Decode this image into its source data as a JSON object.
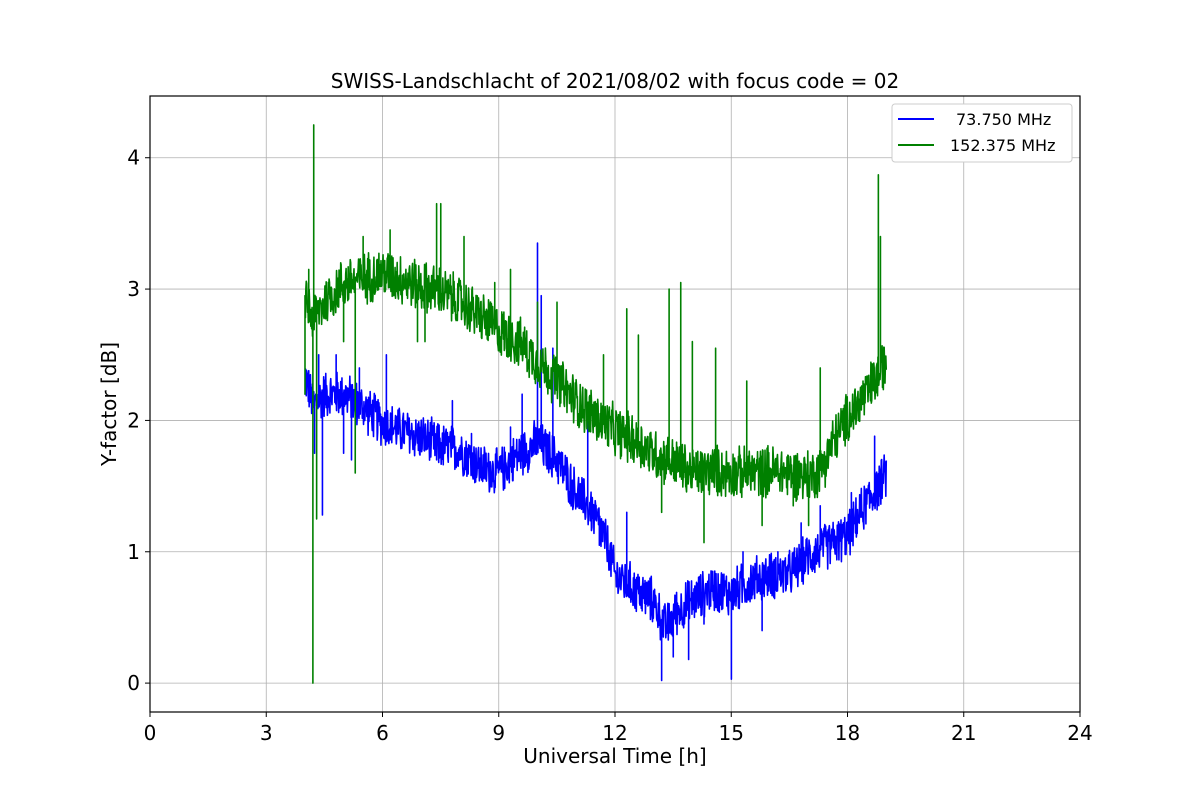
{
  "chart_data": {
    "type": "line",
    "title": "SWISS-Landschlacht of 2021/08/02 with focus code = 02",
    "xlabel": "Universal Time [h]",
    "ylabel": "Y-factor [dB]",
    "xlim": [
      0,
      24
    ],
    "ylim": [
      -0.22,
      4.47
    ],
    "xticks": [
      0,
      3,
      6,
      9,
      12,
      15,
      18,
      21,
      24
    ],
    "yticks": [
      0,
      1,
      2,
      3,
      4
    ],
    "grid": true,
    "legend_position": "top-right",
    "series": [
      {
        "name": "73.750 MHz",
        "color": "#0000ff",
        "base": {
          "x": [
            4.0,
            4.2,
            4.5,
            5.0,
            5.5,
            6.0,
            6.5,
            7.0,
            7.5,
            8.0,
            8.5,
            9.0,
            9.5,
            10.0,
            10.5,
            11.0,
            11.3,
            11.6,
            11.8,
            12.0,
            12.5,
            13.0,
            13.3,
            13.6,
            14.0,
            14.5,
            15.0,
            15.5,
            16.0,
            16.5,
            17.0,
            17.5,
            18.0,
            18.5,
            19.0
          ],
          "y": [
            2.35,
            2.12,
            2.2,
            2.2,
            2.1,
            1.98,
            1.92,
            1.87,
            1.8,
            1.78,
            1.65,
            1.6,
            1.74,
            1.83,
            1.7,
            1.45,
            1.35,
            1.2,
            1.05,
            0.82,
            0.72,
            0.62,
            0.42,
            0.55,
            0.63,
            0.72,
            0.68,
            0.78,
            0.82,
            0.83,
            0.97,
            1.05,
            1.12,
            1.38,
            1.58
          ]
        },
        "noise": 0.2,
        "spikes": [
          {
            "x": 4.25,
            "y": 1.75
          },
          {
            "x": 4.35,
            "y": 2.5
          },
          {
            "x": 4.45,
            "y": 1.28
          },
          {
            "x": 4.8,
            "y": 2.5
          },
          {
            "x": 5.0,
            "y": 1.75
          },
          {
            "x": 5.2,
            "y": 1.7
          },
          {
            "x": 5.4,
            "y": 2.4
          },
          {
            "x": 6.1,
            "y": 2.5
          },
          {
            "x": 7.1,
            "y": 1.8
          },
          {
            "x": 7.4,
            "y": 1.7
          },
          {
            "x": 7.8,
            "y": 2.15
          },
          {
            "x": 8.3,
            "y": 1.9
          },
          {
            "x": 9.3,
            "y": 1.95
          },
          {
            "x": 9.6,
            "y": 2.2
          },
          {
            "x": 10.0,
            "y": 3.35
          },
          {
            "x": 10.1,
            "y": 2.95
          },
          {
            "x": 10.4,
            "y": 2.55
          },
          {
            "x": 11.3,
            "y": 2.05
          },
          {
            "x": 11.6,
            "y": 1.05
          },
          {
            "x": 12.3,
            "y": 1.3
          },
          {
            "x": 12.7,
            "y": 0.55
          },
          {
            "x": 13.2,
            "y": 0.02
          },
          {
            "x": 13.5,
            "y": 0.2
          },
          {
            "x": 13.9,
            "y": 0.18
          },
          {
            "x": 14.3,
            "y": 0.45
          },
          {
            "x": 15.0,
            "y": 0.03
          },
          {
            "x": 15.3,
            "y": 1.0
          },
          {
            "x": 15.8,
            "y": 0.4
          },
          {
            "x": 16.2,
            "y": 1.0
          },
          {
            "x": 16.8,
            "y": 1.22
          },
          {
            "x": 17.3,
            "y": 1.35
          },
          {
            "x": 18.1,
            "y": 1.45
          },
          {
            "x": 18.7,
            "y": 1.88
          }
        ]
      },
      {
        "name": "152.375 MHz",
        "color": "#008000",
        "base": {
          "x": [
            4.0,
            4.2,
            4.5,
            5.0,
            5.5,
            6.0,
            6.5,
            7.0,
            7.5,
            8.0,
            8.5,
            9.0,
            9.5,
            10.0,
            10.5,
            11.0,
            11.5,
            12.0,
            12.5,
            13.0,
            13.5,
            14.0,
            14.5,
            15.0,
            15.5,
            16.0,
            16.5,
            17.0,
            17.3,
            17.6,
            18.0,
            18.5,
            19.0
          ],
          "y": [
            2.95,
            2.78,
            2.9,
            3.05,
            3.08,
            3.12,
            3.08,
            3.02,
            2.98,
            2.9,
            2.8,
            2.68,
            2.6,
            2.45,
            2.3,
            2.15,
            2.02,
            1.92,
            1.85,
            1.75,
            1.68,
            1.6,
            1.62,
            1.6,
            1.6,
            1.62,
            1.6,
            1.58,
            1.62,
            1.82,
            2.02,
            2.2,
            2.45
          ]
        },
        "noise": 0.22,
        "spikes": [
          {
            "x": 4.0,
            "y": 2.2
          },
          {
            "x": 4.1,
            "y": 3.15
          },
          {
            "x": 4.2,
            "y": 0.0
          },
          {
            "x": 4.22,
            "y": 4.25
          },
          {
            "x": 4.3,
            "y": 1.25
          },
          {
            "x": 4.5,
            "y": 2.8
          },
          {
            "x": 5.0,
            "y": 2.6
          },
          {
            "x": 5.3,
            "y": 1.6
          },
          {
            "x": 5.5,
            "y": 3.4
          },
          {
            "x": 6.2,
            "y": 3.45
          },
          {
            "x": 6.9,
            "y": 2.6
          },
          {
            "x": 7.1,
            "y": 2.6
          },
          {
            "x": 7.4,
            "y": 3.65
          },
          {
            "x": 7.5,
            "y": 3.65
          },
          {
            "x": 8.1,
            "y": 3.4
          },
          {
            "x": 8.9,
            "y": 3.05
          },
          {
            "x": 9.3,
            "y": 3.15
          },
          {
            "x": 9.6,
            "y": 2.5
          },
          {
            "x": 10.0,
            "y": 2.9
          },
          {
            "x": 10.5,
            "y": 2.9
          },
          {
            "x": 11.7,
            "y": 2.5
          },
          {
            "x": 12.3,
            "y": 2.85
          },
          {
            "x": 12.6,
            "y": 2.65
          },
          {
            "x": 13.4,
            "y": 3.0
          },
          {
            "x": 13.7,
            "y": 3.05
          },
          {
            "x": 13.2,
            "y": 1.3
          },
          {
            "x": 14.0,
            "y": 2.6
          },
          {
            "x": 14.3,
            "y": 1.07
          },
          {
            "x": 14.6,
            "y": 2.55
          },
          {
            "x": 15.4,
            "y": 2.3
          },
          {
            "x": 15.8,
            "y": 1.2
          },
          {
            "x": 16.6,
            "y": 1.35
          },
          {
            "x": 17.0,
            "y": 1.2
          },
          {
            "x": 17.3,
            "y": 2.4
          },
          {
            "x": 18.4,
            "y": 2.3
          },
          {
            "x": 18.8,
            "y": 3.87
          },
          {
            "x": 18.85,
            "y": 3.4
          }
        ]
      }
    ]
  }
}
